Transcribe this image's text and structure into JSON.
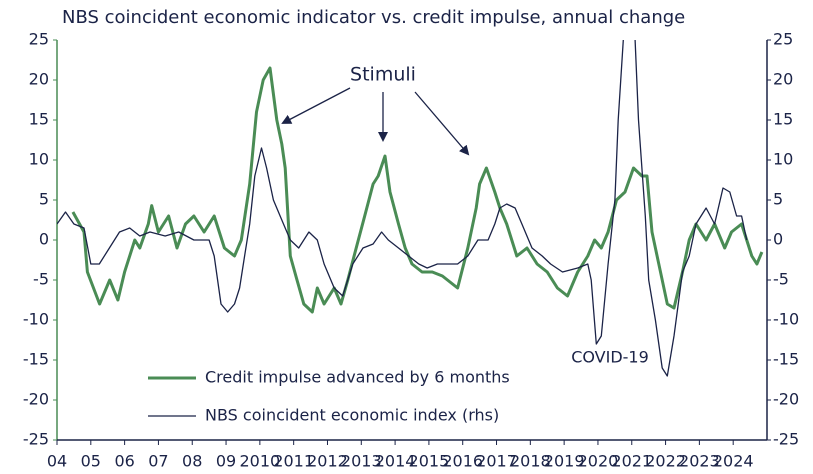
{
  "chart_data": {
    "type": "line",
    "title": "NBS coincident economic indicator vs. credit impulse, annual change",
    "annotations": [
      "Stimuli",
      "COVID-19"
    ],
    "xlim": [
      2004,
      2025
    ],
    "xticks": [
      {
        "value": 2004,
        "label": "04"
      },
      {
        "value": 2005,
        "label": "05"
      },
      {
        "value": 2006,
        "label": "06"
      },
      {
        "value": 2007,
        "label": "07"
      },
      {
        "value": 2008,
        "label": "08"
      },
      {
        "value": 2009,
        "label": "09"
      },
      2010,
      2011,
      2012,
      2013,
      2014,
      2015,
      2016,
      2017,
      2018,
      2019,
      2020,
      2021,
      2022,
      2023,
      2024
    ],
    "ylim": [
      -25,
      25
    ],
    "yticks": [
      -25,
      -20,
      -15,
      -10,
      -5,
      0,
      5,
      10,
      15,
      20,
      25
    ],
    "y2lim": [
      -25,
      25
    ],
    "y2ticks": [
      -25,
      -20,
      -15,
      -10,
      -5,
      0,
      5,
      10,
      15,
      20,
      25
    ],
    "series": [
      {
        "name": "Credit impulse advanced by 6 months",
        "color": "#4a8c55",
        "axis": "y",
        "x": [
          2004.47,
          2004.8,
          2004.9,
          2005.26,
          2005.56,
          2005.8,
          2006.0,
          2006.3,
          2006.45,
          2006.7,
          2006.8,
          2007.0,
          2007.3,
          2007.55,
          2007.8,
          2008.05,
          2008.35,
          2008.65,
          2008.95,
          2009.25,
          2009.45,
          2009.7,
          2009.9,
          2010.1,
          2010.3,
          2010.5,
          2010.65,
          2010.75,
          2010.9,
          2011.1,
          2011.3,
          2011.55,
          2011.7,
          2011.9,
          2012.2,
          2012.4,
          2012.6,
          2012.85,
          2013.1,
          2013.35,
          2013.5,
          2013.7,
          2013.85,
          2014.1,
          2014.3,
          2014.5,
          2014.8,
          2015.1,
          2015.4,
          2015.85,
          2016.15,
          2016.4,
          2016.5,
          2016.7,
          2016.95,
          2017.1,
          2017.3,
          2017.6,
          2017.9,
          2018.2,
          2018.5,
          2018.8,
          2019.1,
          2019.4,
          2019.7,
          2019.9,
          2020.1,
          2020.3,
          2020.55,
          2020.8,
          2021.05,
          2021.3,
          2021.45,
          2021.6,
          2021.8,
          2022.05,
          2022.25,
          2022.5,
          2022.7,
          2022.9,
          2023.2,
          2023.45,
          2023.75,
          2023.95,
          2024.25,
          2024.4,
          2024.55,
          2024.7,
          2024.85
        ],
        "values": [
          3.5,
          1,
          -4,
          -8,
          -5,
          -7.5,
          -4,
          0,
          -1,
          2,
          4.3,
          1,
          3,
          -1,
          2,
          3,
          1,
          3,
          -1,
          -2,
          0,
          7,
          16,
          20,
          21.5,
          15,
          12,
          9,
          -2,
          -5,
          -8,
          -9,
          -6,
          -8,
          -6,
          -8,
          -5,
          -1,
          3,
          7,
          8,
          10.5,
          6,
          2,
          -1,
          -3,
          -4,
          -4,
          -4.5,
          -6,
          -1,
          4,
          7,
          9,
          6,
          4,
          2,
          -2,
          -1,
          -3,
          -4,
          -6,
          -7,
          -4,
          -2,
          0,
          -1,
          1,
          5,
          6,
          9,
          8,
          8,
          1,
          -3,
          -8,
          -8.5,
          -4,
          0,
          2,
          0,
          2,
          -1,
          1,
          2,
          0,
          -2,
          -3,
          -1.5
        ]
      },
      {
        "name": "NBS coincident economic index (rhs)",
        "color": "#1b2347",
        "axis": "y2",
        "x": [
          2004.0,
          2004.25,
          2004.5,
          2004.8,
          2005.0,
          2005.25,
          2005.55,
          2005.85,
          2006.15,
          2006.45,
          2006.75,
          2007.2,
          2007.6,
          2008.05,
          2008.5,
          2008.65,
          2008.85,
          2009.05,
          2009.25,
          2009.4,
          2009.55,
          2009.7,
          2009.85,
          2010.05,
          2010.2,
          2010.4,
          2010.7,
          2010.9,
          2011.15,
          2011.45,
          2011.7,
          2011.9,
          2012.2,
          2012.45,
          2012.75,
          2013.05,
          2013.35,
          2013.6,
          2013.8,
          2014.1,
          2014.4,
          2014.7,
          2014.95,
          2015.25,
          2015.55,
          2015.85,
          2016.15,
          2016.45,
          2016.75,
          2016.95,
          2017.1,
          2017.3,
          2017.55,
          2017.75,
          2018.05,
          2018.35,
          2018.6,
          2018.95,
          2019.4,
          2019.7,
          2019.8,
          2019.95,
          2020.1,
          2020.3,
          2020.5,
          2020.6,
          2020.75,
          2020.9,
          2021.1,
          2021.2,
          2021.4,
          2021.5,
          2021.7,
          2021.9,
          2022.05,
          2022.25,
          2022.5,
          2022.7,
          2022.9,
          2023.2,
          2023.45,
          2023.7,
          2023.9,
          2024.1,
          2024.25,
          2024.4
        ],
        "values": [
          2,
          3.5,
          2,
          1.5,
          -3,
          -3,
          -1,
          1,
          1.5,
          0.5,
          1,
          0.5,
          1,
          0,
          0,
          -2,
          -8,
          -9,
          -8,
          -6,
          -2,
          2,
          8,
          11.5,
          9,
          5,
          2,
          0,
          -1,
          1,
          0,
          -3,
          -6,
          -7,
          -3,
          -1,
          -0.5,
          1,
          0,
          -1,
          -2,
          -3,
          -3.5,
          -3,
          -3,
          -3,
          -2,
          0,
          0,
          2,
          4,
          4.5,
          4,
          2,
          -1,
          -2,
          -3,
          -4,
          -3.5,
          -3,
          -5,
          -13,
          -12,
          -3,
          5,
          15,
          25,
          30,
          25,
          15,
          3,
          -5,
          -10,
          -16,
          -17,
          -12,
          -4,
          -2,
          2,
          4,
          2,
          6.5,
          6,
          3,
          3,
          0
        ]
      }
    ]
  }
}
